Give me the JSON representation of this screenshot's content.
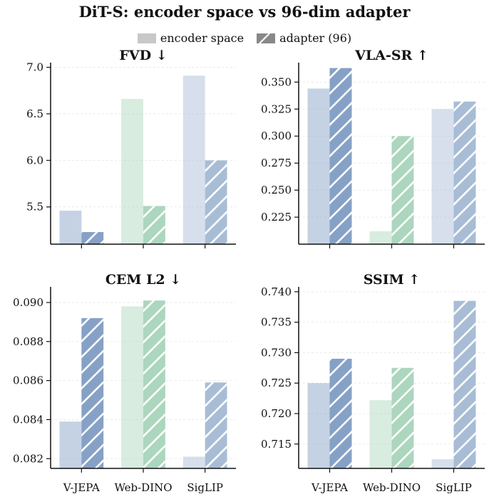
{
  "figure_title": "DiT-S: encoder space vs 96-dim adapter",
  "legend": {
    "encoder": "encoder space",
    "adapter": "adapter (96)"
  },
  "colors": {
    "V-JEPA": "#7f9cc3",
    "Web-DINO": "#a8d4bb",
    "SigLIP": "#a3b9d3",
    "legend_encoder": "#c8c8c8",
    "legend_adapter": "#888888"
  },
  "chart_data": [
    {
      "type": "bar",
      "title": "FVD ↓",
      "categories": [
        "V-JEPA",
        "Web-DINO",
        "SigLIP"
      ],
      "series": [
        {
          "name": "encoder space",
          "values": [
            5.46,
            6.66,
            6.91
          ]
        },
        {
          "name": "adapter (96)",
          "values": [
            5.23,
            5.51,
            6.0
          ]
        }
      ],
      "ylim": [
        5.1,
        7.05
      ],
      "yticks": [
        5.5,
        6.0,
        6.5,
        7.0
      ],
      "ytick_labels": [
        "5.5",
        "6.0",
        "6.5",
        "7.0"
      ],
      "show_xticklabels": false
    },
    {
      "type": "bar",
      "title": "VLA-SR ↑",
      "categories": [
        "V-JEPA",
        "Web-DINO",
        "SigLIP"
      ],
      "series": [
        {
          "name": "encoder space",
          "values": [
            0.344,
            0.212,
            0.325
          ]
        },
        {
          "name": "adapter (96)",
          "values": [
            0.363,
            0.3,
            0.332
          ]
        }
      ],
      "ylim": [
        0.2,
        0.368
      ],
      "yticks": [
        0.225,
        0.25,
        0.275,
        0.3,
        0.325,
        0.35
      ],
      "ytick_labels": [
        "0.225",
        "0.250",
        "0.275",
        "0.300",
        "0.325",
        "0.350"
      ],
      "show_xticklabels": false
    },
    {
      "type": "bar",
      "title": "CEM L2 ↓",
      "categories": [
        "V-JEPA",
        "Web-DINO",
        "SigLIP"
      ],
      "series": [
        {
          "name": "encoder space",
          "values": [
            0.0839,
            0.0898,
            0.0821
          ]
        },
        {
          "name": "adapter (96)",
          "values": [
            0.0892,
            0.0901,
            0.0859
          ]
        }
      ],
      "ylim": [
        0.0815,
        0.0908
      ],
      "yticks": [
        0.082,
        0.084,
        0.086,
        0.088,
        0.09
      ],
      "ytick_labels": [
        "0.082",
        "0.084",
        "0.086",
        "0.088",
        "0.090"
      ],
      "show_xticklabels": true
    },
    {
      "type": "bar",
      "title": "SSIM ↑",
      "categories": [
        "V-JEPA",
        "Web-DINO",
        "SigLIP"
      ],
      "series": [
        {
          "name": "encoder space",
          "values": [
            0.725,
            0.7222,
            0.7125
          ]
        },
        {
          "name": "adapter (96)",
          "values": [
            0.729,
            0.7275,
            0.7385
          ]
        }
      ],
      "ylim": [
        0.711,
        0.7408
      ],
      "yticks": [
        0.715,
        0.72,
        0.725,
        0.73,
        0.735,
        0.74
      ],
      "ytick_labels": [
        "0.715",
        "0.720",
        "0.725",
        "0.730",
        "0.735",
        "0.740"
      ],
      "show_xticklabels": true
    }
  ]
}
